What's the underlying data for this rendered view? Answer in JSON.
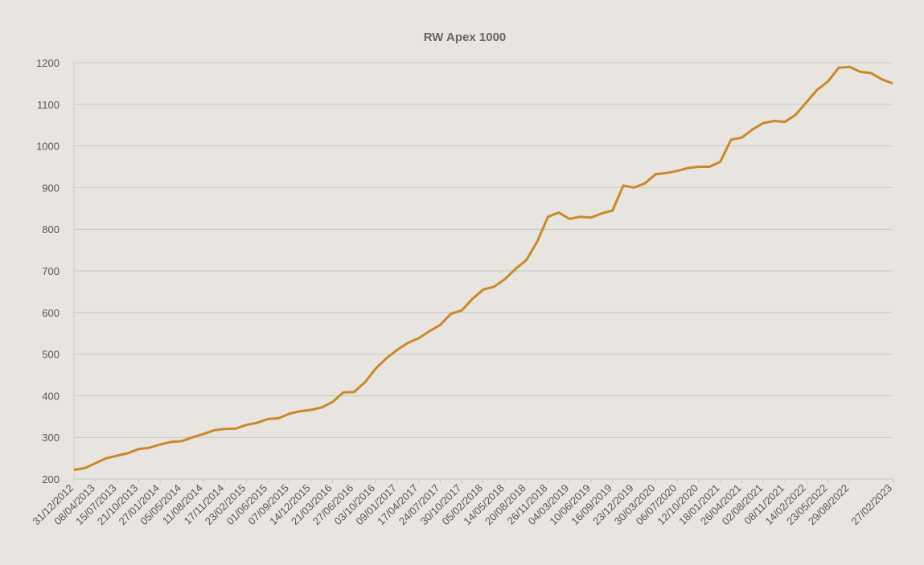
{
  "chart_data": {
    "type": "line",
    "title": "RW Apex 1000",
    "categories": [
      "31/12/2012",
      null,
      "08/04/2013",
      null,
      "15/07/2013",
      null,
      "21/10/2013",
      null,
      "27/01/2014",
      null,
      "05/05/2014",
      null,
      "11/08/2014",
      null,
      "17/11/2014",
      null,
      "23/02/2015",
      null,
      "01/06/2015",
      null,
      "07/09/2015",
      null,
      "14/12/2015",
      null,
      "21/03/2016",
      null,
      "27/06/2016",
      null,
      "03/10/2016",
      null,
      "09/01/2017",
      null,
      "17/04/2017",
      null,
      "24/07/2017",
      null,
      "30/10/2017",
      null,
      "05/02/2018",
      null,
      "14/05/2018",
      null,
      "20/08/2018",
      null,
      "26/11/2018",
      null,
      "04/03/2019",
      null,
      "10/06/2019",
      null,
      "16/09/2019",
      null,
      "23/12/2019",
      null,
      "30/03/2020",
      null,
      "06/07/2020",
      null,
      "12/10/2020",
      null,
      "18/01/2021",
      null,
      "26/04/2021",
      null,
      "02/08/2021",
      null,
      "08/11/2021",
      null,
      "14/02/2022",
      null,
      "23/05/2022",
      null,
      "29/08/2022",
      null,
      null,
      null,
      "27/02/2023"
    ],
    "values": [
      222,
      226,
      238,
      250,
      256,
      262,
      272,
      275,
      283,
      289,
      291,
      300,
      308,
      317,
      320,
      321,
      330,
      335,
      344,
      346,
      357,
      363,
      366,
      372,
      385,
      408,
      409,
      432,
      465,
      490,
      510,
      527,
      538,
      555,
      570,
      597,
      605,
      633,
      655,
      662,
      680,
      705,
      726,
      770,
      830,
      840,
      825,
      830,
      828,
      838,
      845,
      905,
      900,
      910,
      932,
      935,
      940,
      947,
      950,
      950,
      962,
      1015,
      1020,
      1040,
      1055,
      1060,
      1058,
      1075,
      1105,
      1135,
      1155,
      1188,
      1190,
      1178,
      1175,
      1160,
      1150
    ],
    "color": "#c8892a",
    "ylim": [
      200,
      1200
    ],
    "yticks": [
      200,
      300,
      400,
      500,
      600,
      700,
      800,
      900,
      1000,
      1100,
      1200
    ],
    "grid": true
  }
}
